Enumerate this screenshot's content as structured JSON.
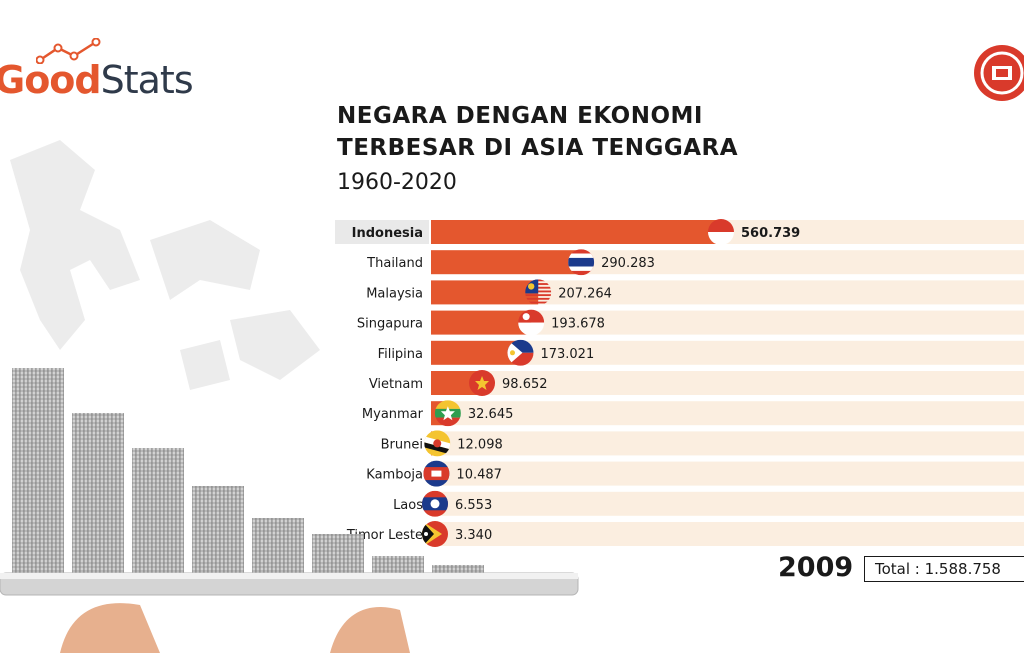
{
  "brand": {
    "logo_good": "Good",
    "logo_stats": "Stats"
  },
  "header": {
    "title_line1": "NEGARA DENGAN EKONOMI",
    "title_line2": "TERBESAR DI ASIA TENGGARA",
    "subtitle": "1960-2020"
  },
  "footer": {
    "year": "2009",
    "total": "Total : 1.588.758"
  },
  "colors": {
    "bar": "#e4572e",
    "track": "#fbeee0",
    "highlight_label_bg": "#e9e9e9",
    "accent_red": "#d93a2b"
  },
  "chart_data": {
    "type": "bar",
    "orientation": "horizontal",
    "categories": [
      "Indonesia",
      "Thailand",
      "Malaysia",
      "Singapura",
      "Filipina",
      "Vietnam",
      "Myanmar",
      "Brunei",
      "Kamboja",
      "Laos",
      "Timor Leste"
    ],
    "values": [
      560739,
      290283,
      207264,
      193678,
      173021,
      98652,
      32645,
      12098,
      10487,
      6553,
      3340
    ],
    "value_labels": [
      "560.739",
      "290.283",
      "207.264",
      "193.678",
      "173.021",
      "98.652",
      "32.645",
      "12.098",
      "10.487",
      "6.553",
      "3.340"
    ],
    "flags": [
      "indonesia-flag-icon",
      "thailand-flag-icon",
      "malaysia-flag-icon",
      "singapore-flag-icon",
      "philippines-flag-icon",
      "vietnam-flag-icon",
      "myanmar-flag-icon",
      "brunei-flag-icon",
      "cambodia-flag-icon",
      "laos-flag-icon",
      "timor-leste-flag-icon"
    ],
    "highlighted": "Indonesia"
  }
}
